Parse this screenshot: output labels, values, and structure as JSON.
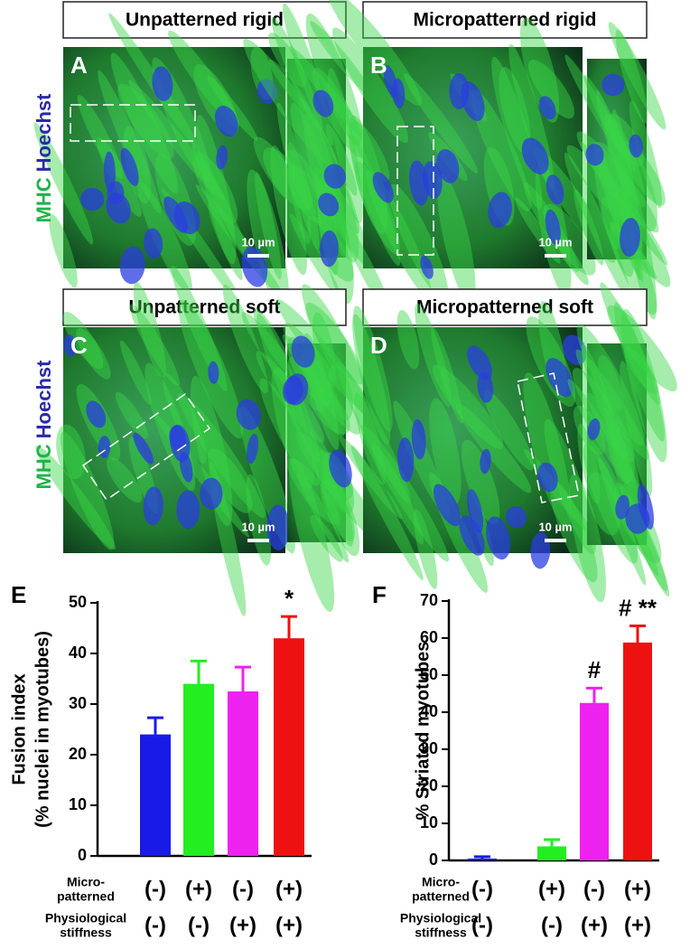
{
  "panels": [
    {
      "letter": "A",
      "title": "Unpatterned rigid",
      "scale": "10 µm"
    },
    {
      "letter": "B",
      "title": "Micropatterned rigid",
      "scale": "10 µm"
    },
    {
      "letter": "C",
      "title": "Unpatterned soft",
      "scale": "10 µm"
    },
    {
      "letter": "D",
      "title": "Micropatterned soft",
      "scale": "10 µm"
    }
  ],
  "stain_labels": [
    {
      "marker": "MHC",
      "nucleus": "Hoechst"
    },
    {
      "marker": "MHC",
      "nucleus": "Hoechst"
    }
  ],
  "chart_data": [
    {
      "type": "bar",
      "label": "E",
      "ylabel": [
        "Fusion index",
        "(% nuclei in myotubes)"
      ],
      "values": [
        24,
        34,
        32.5,
        43
      ],
      "errors": [
        3.3,
        4.5,
        4.8,
        4.3
      ],
      "colors": [
        "#1a1ae8",
        "#22ee22",
        "#ee22ee",
        "#ee1111"
      ],
      "annotations": [
        null,
        null,
        null,
        "*"
      ],
      "ylim": [
        0,
        50
      ],
      "yticks": [
        0,
        10,
        20,
        30,
        40,
        50
      ],
      "conditions": [
        {
          "name": [
            "Micro-",
            "patterned"
          ],
          "values": [
            "(-)",
            "(+)",
            "(-)",
            "(+)"
          ]
        },
        {
          "name": [
            "Physiological",
            "stiffness"
          ],
          "values": [
            "(-)",
            "(-)",
            "(+)",
            "(+)"
          ]
        }
      ]
    },
    {
      "type": "bar",
      "label": "F",
      "ylabel": [
        "% Striated myotubes"
      ],
      "values": [
        0.5,
        3.8,
        42.5,
        58.8
      ],
      "errors": [
        0.5,
        1.8,
        4,
        4.5
      ],
      "colors": [
        "#1a1ae8",
        "#22ee22",
        "#ee22ee",
        "#ee1111"
      ],
      "annotations": [
        null,
        null,
        "#",
        "# **"
      ],
      "ylim": [
        0,
        70
      ],
      "yticks": [
        0,
        10,
        20,
        30,
        40,
        50,
        60,
        70
      ],
      "conditions": [
        {
          "name": [
            "Micro-",
            "patterned"
          ],
          "values": [
            "(-)",
            "(+)",
            "(-)",
            "(+)"
          ]
        },
        {
          "name": [
            "Physiological",
            "stiffness"
          ],
          "values": [
            "(-)",
            "(-)",
            "(+)",
            "(+)"
          ]
        }
      ]
    }
  ]
}
